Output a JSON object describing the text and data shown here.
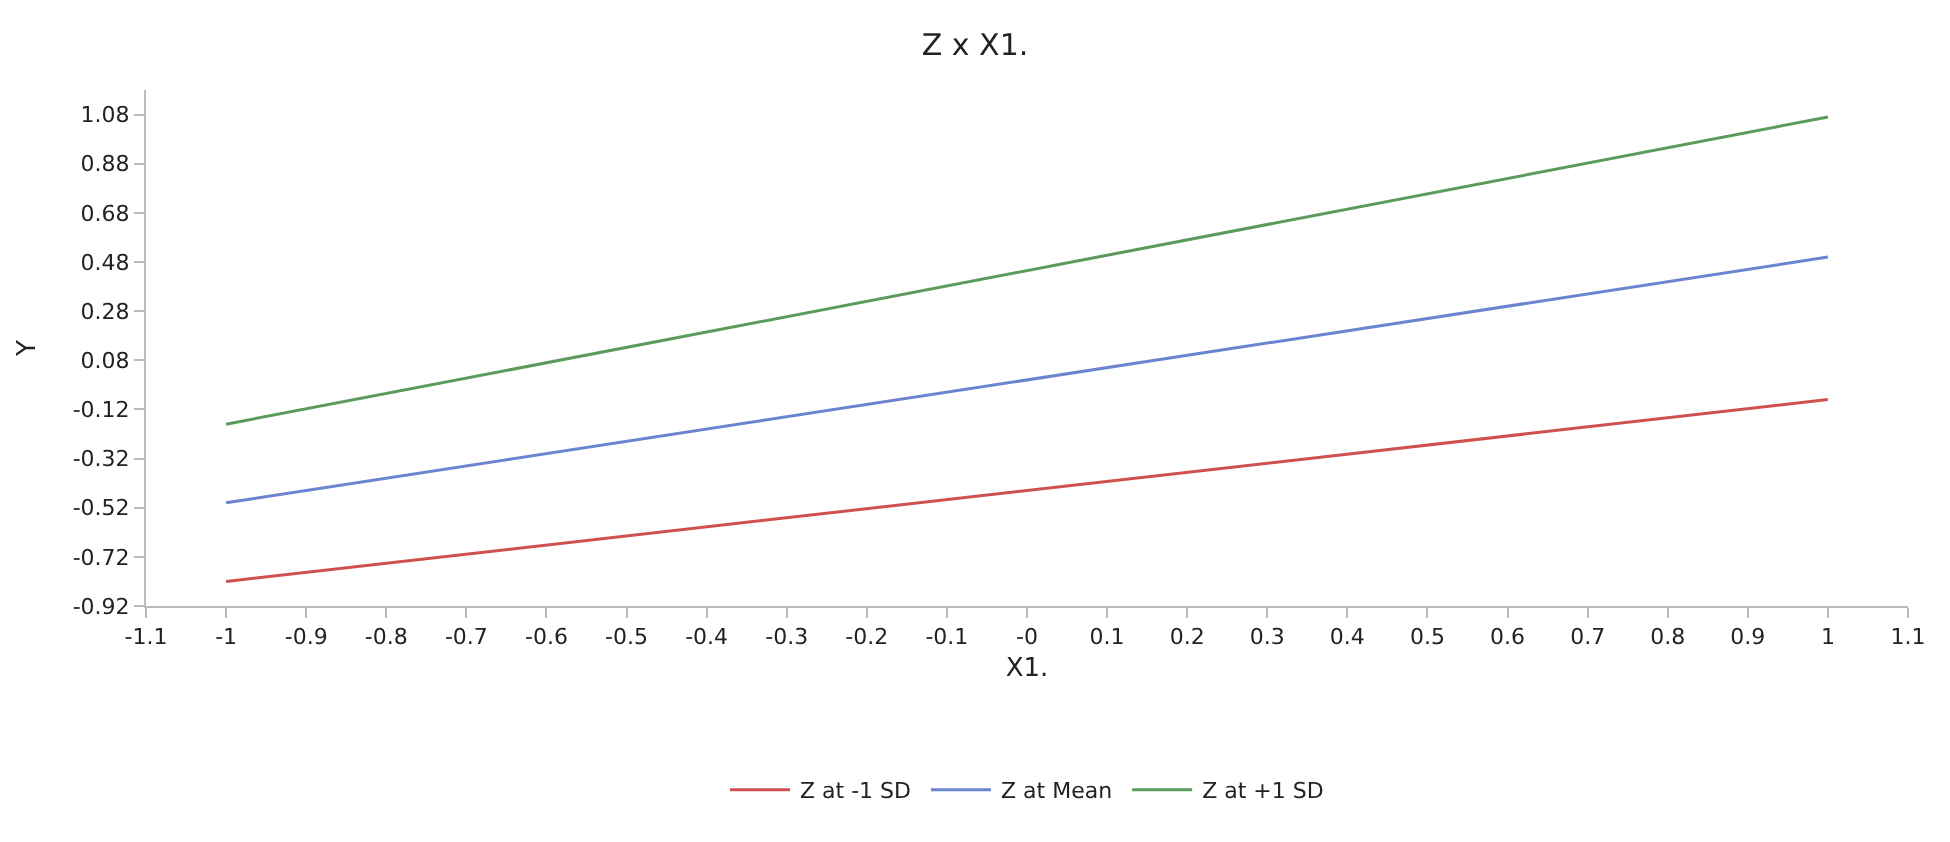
{
  "chart_data": {
    "type": "line",
    "title": "Z x X1.",
    "xlabel": "X1.",
    "ylabel": "Y",
    "x": [
      -1,
      1
    ],
    "series": [
      {
        "name": "Z at -1 SD",
        "color": "#d05050",
        "values": [
          -0.82,
          -0.08
        ]
      },
      {
        "name": "Z at Mean",
        "color": "#6a84d0",
        "values": [
          -0.5,
          0.5
        ]
      },
      {
        "name": "Z at +1 SD",
        "color": "#5a9a5a",
        "values": [
          -0.18,
          1.07
        ]
      }
    ],
    "xlim": [
      -1.1,
      1.1
    ],
    "xticks": [
      -1.1,
      -1,
      -0.9,
      -0.8,
      -0.7,
      -0.6,
      -0.5,
      -0.4,
      -0.3,
      -0.2,
      -0.1,
      {
        "value": 0,
        "label": "-0"
      },
      0.1,
      0.2,
      0.3,
      0.4,
      0.5,
      0.6,
      0.7,
      0.8,
      0.9,
      1,
      1.1
    ],
    "ylim": [
      -0.92,
      1.18
    ],
    "yticks": [
      -0.92,
      -0.72,
      -0.52,
      -0.32,
      -0.12,
      0.08,
      0.28,
      0.48,
      0.68,
      0.88,
      1.08
    ],
    "legend": "bottom",
    "marker": "none",
    "line_style": "solid"
  }
}
